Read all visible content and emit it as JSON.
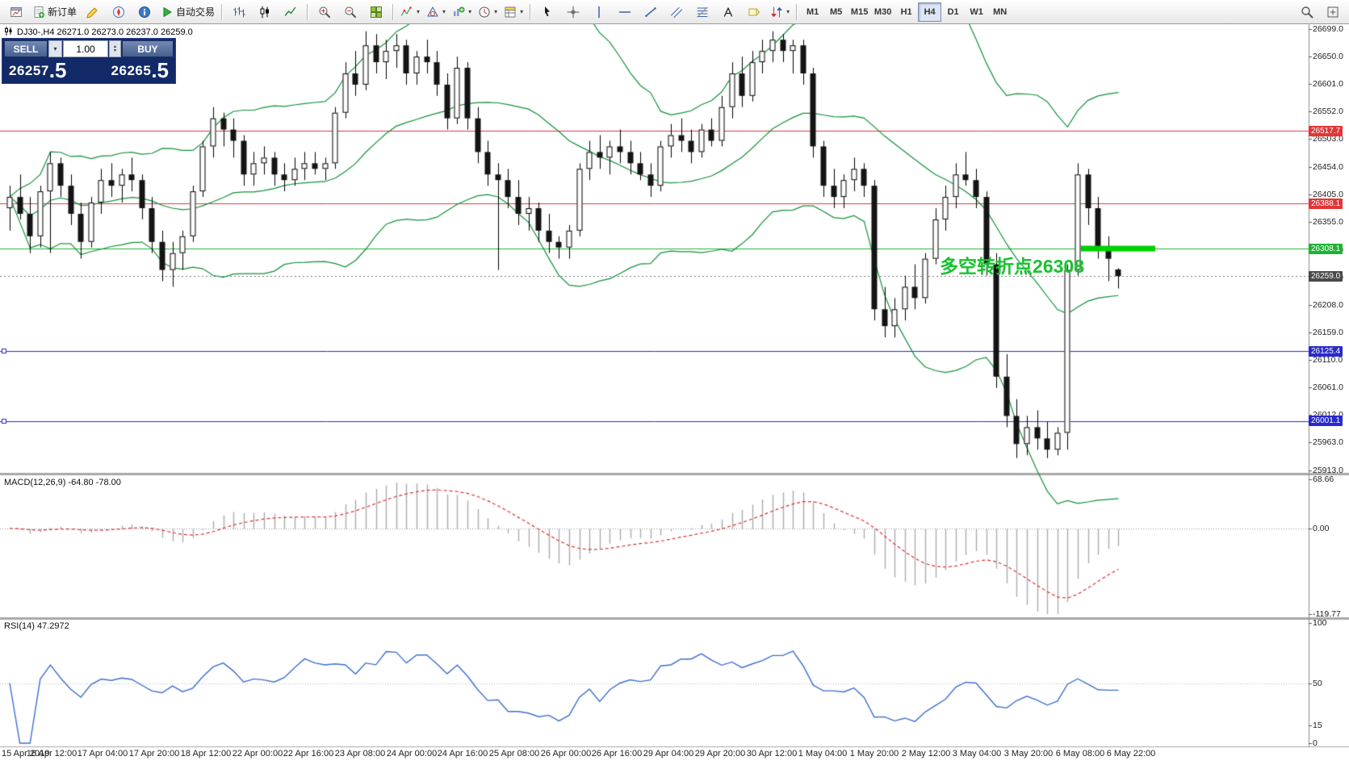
{
  "toolbar": {
    "groups": [
      {
        "items": [
          {
            "name": "new-chart-icon",
            "icon": "win"
          },
          {
            "name": "new-order-button",
            "icon": "neworder",
            "label": "新订单"
          },
          {
            "name": "metaeditor-icon",
            "icon": "editor"
          },
          {
            "name": "navigator-icon",
            "icon": "navigator"
          },
          {
            "name": "data-window-icon",
            "icon": "info"
          },
          {
            "name": "autotrading-button",
            "icon": "play",
            "label": "自动交易"
          }
        ]
      },
      {
        "items": [
          {
            "name": "bar-chart-icon",
            "icon": "bars"
          },
          {
            "name": "candlestick-chart-icon",
            "icon": "candles"
          },
          {
            "name": "line-chart-icon",
            "icon": "linechart"
          }
        ]
      },
      {
        "items": [
          {
            "name": "zoom-in-icon",
            "icon": "zoomin"
          },
          {
            "name": "zoom-out-icon",
            "icon": "zoomout"
          },
          {
            "name": "tile-windows-icon",
            "icon": "tile"
          }
        ]
      },
      {
        "items": [
          {
            "name": "indicators-icon",
            "icon": "indicator",
            "dropdown": true
          },
          {
            "name": "objects-icon",
            "icon": "objects",
            "dropdown": true
          },
          {
            "name": "add-indicator-icon",
            "icon": "addchart",
            "dropdown": true
          },
          {
            "name": "periods-icon",
            "icon": "clock",
            "dropdown": true
          },
          {
            "name": "templates-icon",
            "icon": "template",
            "dropdown": true
          }
        ]
      },
      {
        "items": [
          {
            "name": "cursor-icon",
            "icon": "cursor"
          },
          {
            "name": "crosshair-icon",
            "icon": "crosshair"
          },
          {
            "name": "vertical-line-icon",
            "icon": "vline"
          },
          {
            "name": "horizontal-line-icon",
            "icon": "hline"
          },
          {
            "name": "trendline-icon",
            "icon": "tline"
          },
          {
            "name": "channel-icon",
            "icon": "channel"
          },
          {
            "name": "fibonacci-icon",
            "icon": "fibo"
          },
          {
            "name": "text-icon",
            "icon": "text"
          },
          {
            "name": "label-icon",
            "icon": "labelicon"
          },
          {
            "name": "shapes-icon",
            "icon": "shapes",
            "dropdown": true
          }
        ]
      }
    ],
    "timeframes": [
      "M1",
      "M5",
      "M15",
      "M30",
      "H1",
      "H4",
      "D1",
      "W1",
      "MN"
    ],
    "active_timeframe": "H4",
    "right_icons": [
      {
        "name": "search-icon",
        "icon": "magnifier"
      },
      {
        "name": "new-window-icon",
        "icon": "expand"
      }
    ]
  },
  "chart": {
    "symbol_info": "DJ30-,H4  26271.0 26273.0 26237.0 26259.0",
    "trade_panel": {
      "sell_label": "SELL",
      "buy_label": "BUY",
      "volume": "1.00",
      "sell_price": {
        "main": "26257",
        "frac": ".5"
      },
      "buy_price": {
        "main": "26265",
        "frac": ".5"
      }
    },
    "annotation": {
      "text": "多空转折点26308",
      "color": "#17c22e"
    }
  },
  "indicators": {
    "macd_label": "MACD(12,26,9) -64.80 -78.00",
    "rsi_label": "RSI(14) 47.2972"
  },
  "colors": {
    "bull": "#ffffff",
    "bear": "#141414",
    "wick": "#000000",
    "bollinger": "#12923a",
    "macd_hist": "#ababab",
    "macd_signal": "#e03131",
    "rsi_line": "#3d6fce",
    "panel_sep": "#a8a8a8",
    "axis_text": "#1f1f1f",
    "current_price_line": "#777777"
  },
  "chart_data": {
    "type": "candlestick",
    "symbol": "DJ30-",
    "timeframe": "H4",
    "last_quote": {
      "open": 26271.0,
      "high": 26273.0,
      "low": 26237.0,
      "close": 26259.0
    },
    "price_axis": {
      "min": 25913.0,
      "max": 26699.0,
      "ticks": [
        26699.0,
        26650.0,
        26601.0,
        26552.0,
        26503.0,
        26454.0,
        26405.0,
        26355.0,
        26306.0,
        26257.0,
        26208.0,
        26159.0,
        26110.0,
        26061.0,
        26012.0,
        25963.0,
        25913.0
      ]
    },
    "levels": [
      {
        "price": 26517.7,
        "label": "26517.7",
        "color": "#e33535",
        "style": "solid"
      },
      {
        "price": 26388.1,
        "label": "26388.1",
        "color": "#e33535",
        "style": "solid"
      },
      {
        "price": 26308.1,
        "label": "26308.1",
        "color": "#1fb335",
        "style": "solid"
      },
      {
        "price": 26259.0,
        "label": "26259.0",
        "color": "#4a4a4a",
        "style": "dotted"
      },
      {
        "price": 26125.4,
        "label": "26125.4",
        "color": "#2929cf",
        "style": "solid",
        "handles": true
      },
      {
        "price": 26001.1,
        "label": "26001.1",
        "color": "#2929cf",
        "style": "solid",
        "handles": true
      }
    ],
    "highlight": {
      "price": 26308.1,
      "color": "#00cf00"
    },
    "bollinger": {
      "period": 20,
      "deviation": 2
    },
    "macd_axis": [
      "68.66",
      "0.00",
      "-119.77"
    ],
    "rsi_axis": [
      "100",
      "50",
      "15",
      "0"
    ],
    "time_labels": [
      "15 Apr 2019",
      "16 Apr 12:00",
      "17 Apr 04:00",
      "17 Apr 20:00",
      "18 Apr 12:00",
      "22 Apr 00:00",
      "22 Apr 16:00",
      "23 Apr 08:00",
      "24 Apr 00:00",
      "24 Apr 16:00",
      "25 Apr 08:00",
      "26 Apr 00:00",
      "26 Apr 16:00",
      "29 Apr 04:00",
      "29 Apr 20:00",
      "30 Apr 12:00",
      "1 May 04:00",
      "1 May 20:00",
      "2 May 12:00",
      "3 May 04:00",
      "3 May 20:00",
      "6 May 08:00",
      "6 May 22:00"
    ],
    "ohlc": [
      [
        26380,
        26420,
        26340,
        26400
      ],
      [
        26400,
        26440,
        26360,
        26370
      ],
      [
        26370,
        26400,
        26300,
        26330
      ],
      [
        26330,
        26420,
        26310,
        26410
      ],
      [
        26410,
        26480,
        26300,
        26460
      ],
      [
        26460,
        26470,
        26400,
        26420
      ],
      [
        26420,
        26440,
        26350,
        26370
      ],
      [
        26370,
        26390,
        26290,
        26320
      ],
      [
        26320,
        26400,
        26310,
        26390
      ],
      [
        26390,
        26450,
        26370,
        26430
      ],
      [
        26430,
        26460,
        26400,
        26420
      ],
      [
        26420,
        26450,
        26390,
        26440
      ],
      [
        26440,
        26470,
        26410,
        26430
      ],
      [
        26430,
        26440,
        26360,
        26380
      ],
      [
        26380,
        26400,
        26300,
        26320
      ],
      [
        26320,
        26340,
        26250,
        26270
      ],
      [
        26270,
        26320,
        26240,
        26300
      ],
      [
        26300,
        26340,
        26270,
        26330
      ],
      [
        26330,
        26420,
        26320,
        26410
      ],
      [
        26410,
        26500,
        26400,
        26490
      ],
      [
        26490,
        26560,
        26470,
        26540
      ],
      [
        26540,
        26550,
        26490,
        26520
      ],
      [
        26520,
        26540,
        26470,
        26500
      ],
      [
        26500,
        26510,
        26420,
        26440
      ],
      [
        26440,
        26480,
        26420,
        26460
      ],
      [
        26460,
        26490,
        26440,
        26470
      ],
      [
        26470,
        26480,
        26420,
        26440
      ],
      [
        26440,
        26460,
        26410,
        26430
      ],
      [
        26430,
        26470,
        26420,
        26450
      ],
      [
        26450,
        26480,
        26430,
        26460
      ],
      [
        26460,
        26480,
        26440,
        26450
      ],
      [
        26450,
        26470,
        26430,
        26460
      ],
      [
        26460,
        26560,
        26450,
        26550
      ],
      [
        26550,
        26640,
        26540,
        26620
      ],
      [
        26620,
        26660,
        26580,
        26600
      ],
      [
        26600,
        26695,
        26590,
        26670
      ],
      [
        26670,
        26690,
        26620,
        26640
      ],
      [
        26640,
        26680,
        26610,
        26660
      ],
      [
        26660,
        26690,
        26630,
        26670
      ],
      [
        26670,
        26680,
        26600,
        26620
      ],
      [
        26620,
        26660,
        26600,
        26650
      ],
      [
        26650,
        26680,
        26620,
        26640
      ],
      [
        26640,
        26660,
        26580,
        26600
      ],
      [
        26600,
        26620,
        26520,
        26540
      ],
      [
        26540,
        26650,
        26530,
        26630
      ],
      [
        26630,
        26640,
        26520,
        26540
      ],
      [
        26540,
        26560,
        26460,
        26480
      ],
      [
        26480,
        26500,
        26420,
        26440
      ],
      [
        26440,
        26460,
        26270,
        26430
      ],
      [
        26430,
        26450,
        26380,
        26400
      ],
      [
        26400,
        26430,
        26350,
        26370
      ],
      [
        26370,
        26400,
        26340,
        26380
      ],
      [
        26380,
        26390,
        26320,
        26340
      ],
      [
        26340,
        26370,
        26300,
        26320
      ],
      [
        26320,
        26330,
        26290,
        26310
      ],
      [
        26310,
        26350,
        26290,
        26340
      ],
      [
        26340,
        26460,
        26330,
        26450
      ],
      [
        26450,
        26500,
        26430,
        26480
      ],
      [
        26480,
        26510,
        26450,
        26470
      ],
      [
        26470,
        26500,
        26440,
        26490
      ],
      [
        26490,
        26520,
        26460,
        26480
      ],
      [
        26480,
        26500,
        26440,
        26460
      ],
      [
        26460,
        26480,
        26430,
        26440
      ],
      [
        26440,
        26460,
        26400,
        26420
      ],
      [
        26420,
        26500,
        26410,
        26490
      ],
      [
        26490,
        26530,
        26470,
        26510
      ],
      [
        26510,
        26540,
        26480,
        26500
      ],
      [
        26500,
        26520,
        26460,
        26480
      ],
      [
        26480,
        26530,
        26470,
        26520
      ],
      [
        26520,
        26540,
        26490,
        26500
      ],
      [
        26500,
        26580,
        26490,
        26560
      ],
      [
        26560,
        26640,
        26540,
        26620
      ],
      [
        26620,
        26650,
        26560,
        26580
      ],
      [
        26580,
        26660,
        26570,
        26640
      ],
      [
        26640,
        26680,
        26620,
        26660
      ],
      [
        26660,
        26695,
        26640,
        26680
      ],
      [
        26680,
        26690,
        26640,
        26660
      ],
      [
        26660,
        26680,
        26620,
        26670
      ],
      [
        26670,
        26680,
        26600,
        26620
      ],
      [
        26620,
        26630,
        26470,
        26490
      ],
      [
        26490,
        26500,
        26400,
        26420
      ],
      [
        26420,
        26450,
        26380,
        26400
      ],
      [
        26400,
        26440,
        26380,
        26430
      ],
      [
        26430,
        26470,
        26410,
        26450
      ],
      [
        26450,
        26460,
        26400,
        26420
      ],
      [
        26420,
        26430,
        26180,
        26200
      ],
      [
        26200,
        26240,
        26150,
        26170
      ],
      [
        26170,
        26220,
        26150,
        26200
      ],
      [
        26200,
        26260,
        26180,
        26240
      ],
      [
        26240,
        26280,
        26200,
        26220
      ],
      [
        26220,
        26300,
        26210,
        26290
      ],
      [
        26290,
        26380,
        26280,
        26360
      ],
      [
        26360,
        26420,
        26340,
        26400
      ],
      [
        26400,
        26460,
        26380,
        26440
      ],
      [
        26440,
        26480,
        26420,
        26430
      ],
      [
        26430,
        26450,
        26380,
        26400
      ],
      [
        26400,
        26410,
        26260,
        26280
      ],
      [
        26280,
        26300,
        26060,
        26080
      ],
      [
        26080,
        26120,
        25990,
        26010
      ],
      [
        26010,
        26040,
        25935,
        25960
      ],
      [
        25960,
        26010,
        25940,
        25990
      ],
      [
        25990,
        26020,
        25950,
        25970
      ],
      [
        25970,
        26000,
        25935,
        25950
      ],
      [
        25950,
        25990,
        25940,
        25980
      ],
      [
        25980,
        26280,
        25950,
        26270
      ],
      [
        26270,
        26460,
        26260,
        26440
      ],
      [
        26440,
        26450,
        26350,
        26380
      ],
      [
        26380,
        26400,
        26290,
        26310
      ],
      [
        26310,
        26330,
        26250,
        26290
      ],
      [
        26271,
        26273,
        26237,
        26259
      ]
    ]
  }
}
